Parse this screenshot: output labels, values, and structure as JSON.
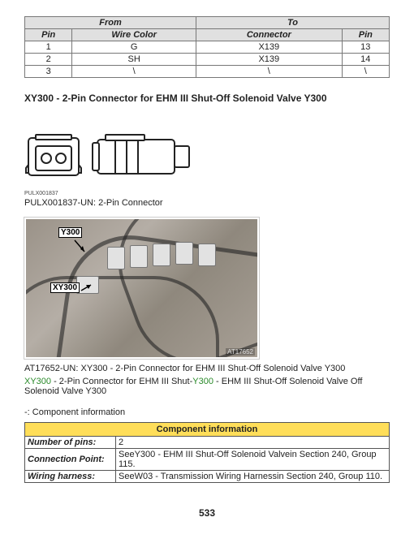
{
  "pin_table": {
    "head_from": "From",
    "head_to": "To",
    "col_pin": "Pin",
    "col_wire": "Wire Color",
    "col_conn": "Connector",
    "rows": [
      {
        "pin_from": "1",
        "wire": "G",
        "conn": "X139",
        "pin_to": "13"
      },
      {
        "pin_from": "2",
        "wire": "SH",
        "conn": "X139",
        "pin_to": "14"
      },
      {
        "pin_from": "3",
        "wire": "\\",
        "conn": "\\",
        "pin_to": "\\"
      }
    ]
  },
  "section_title": "XY300 - 2-Pin Connector for EHM III Shut-Off Solenoid Valve Y300",
  "connector_svg": {
    "img_id": "PULX001837",
    "caption": "PULX001837-UN: 2-Pin Connector"
  },
  "photo": {
    "label_top": "Y300",
    "label_bottom": "XY300",
    "corner_id": "AT17652",
    "caption": "AT17652-UN: XY300 - 2-Pin Connector for EHM III Shut-Off Solenoid Valve Y300"
  },
  "green_line": {
    "g1": "XY300",
    "t1": " - 2-Pin Connector for EHM III Shut-",
    "g2": "Y300",
    "t2": " - EHM III Shut-Off Solenoid Valve Off Solenoid Valve Y300"
  },
  "comp_info_label": "-: Component information",
  "component_table": {
    "header": "Component information",
    "rows": [
      {
        "label": "Number of pins:",
        "value": "2"
      },
      {
        "label": "Connection Point:",
        "value": "SeeY300 - EHM III Shut-Off Solenoid Valvein Section 240, Group 115."
      },
      {
        "label": "Wiring harness:",
        "value": "SeeW03 - Transmission Wiring Harnessin Section 240, Group 110."
      }
    ]
  },
  "page_number": "533",
  "colors": {
    "header_bg": "#e0e0e0",
    "yellow_bg": "#ffde59",
    "border": "#555555",
    "green": "#2a8a2a"
  }
}
